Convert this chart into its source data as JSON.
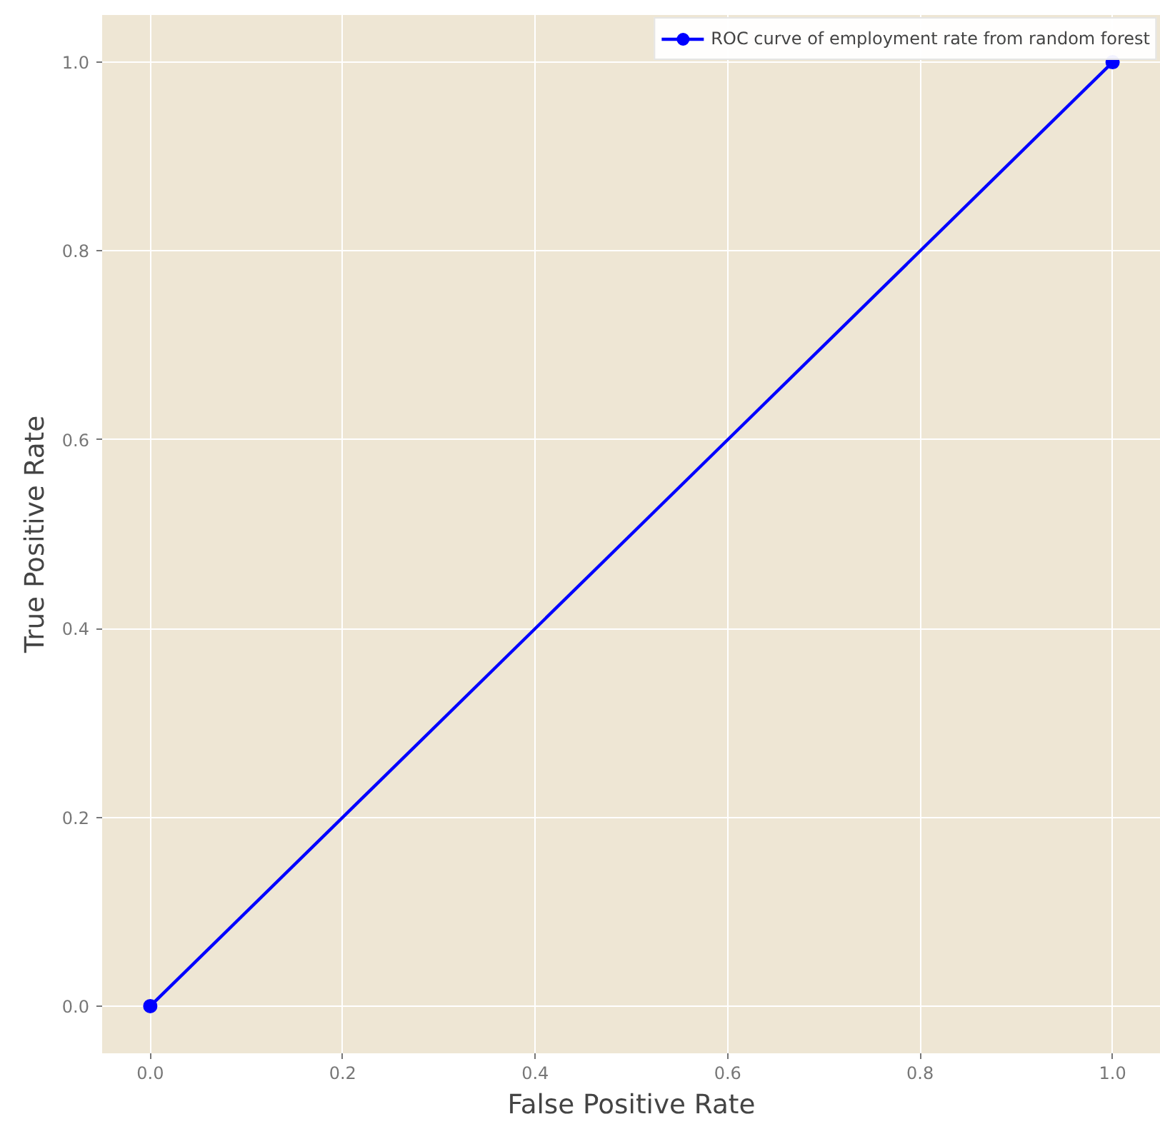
{
  "chart_data": {
    "type": "line",
    "xlabel": "False Positive Rate",
    "ylabel": "True Positive Rate",
    "x": [
      0.0,
      1.0
    ],
    "series": [
      {
        "name": "ROC curve of employment rate from random forest",
        "color": "#0000ff",
        "values": [
          0.0,
          1.0
        ]
      }
    ],
    "xlim": [
      -0.05,
      1.05
    ],
    "ylim": [
      -0.05,
      1.05
    ],
    "xticks": [
      {
        "value": 0,
        "label": "0.0"
      },
      {
        "value": 0.2,
        "label": "0.2"
      },
      {
        "value": 0.4,
        "label": "0.4"
      },
      {
        "value": 0.6,
        "label": "0.6"
      },
      {
        "value": 0.8,
        "label": "0.8"
      },
      {
        "value": 1,
        "label": "1.0"
      }
    ],
    "yticks": [
      {
        "value": 0,
        "label": "0.0"
      },
      {
        "value": 0.2,
        "label": "0.2"
      },
      {
        "value": 0.4,
        "label": "0.4"
      },
      {
        "value": 0.6,
        "label": "0.6"
      },
      {
        "value": 0.8,
        "label": "0.8"
      },
      {
        "value": 1,
        "label": "1.0"
      }
    ],
    "grid": true,
    "legend": "top right",
    "marker": "circle",
    "line_style": "solid"
  }
}
